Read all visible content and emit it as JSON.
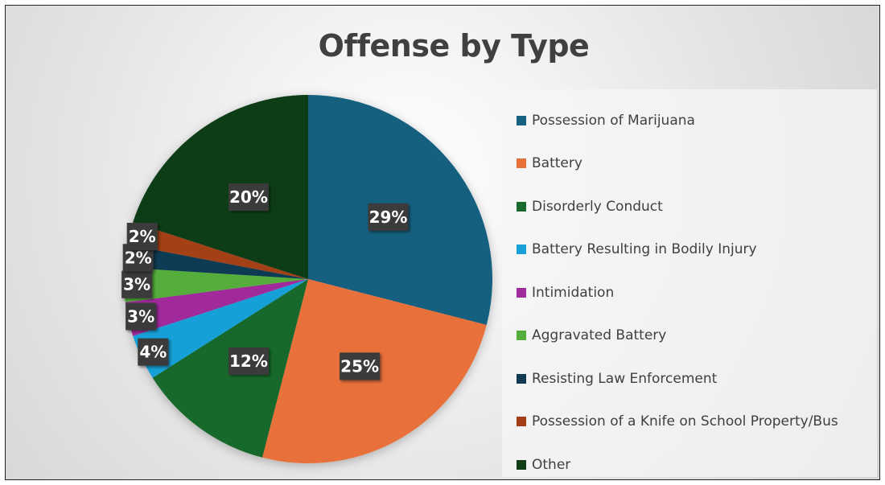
{
  "chart_data": {
    "type": "pie",
    "title": "Offense by Type",
    "legend_position": "right",
    "slices": [
      {
        "label": "Possession of Marijuana",
        "value": 29,
        "data_label": "29%",
        "color": "#17607f"
      },
      {
        "label": "Battery",
        "value": 25,
        "data_label": "25%",
        "color": "#e8703a"
      },
      {
        "label": "Disorderly Conduct",
        "value": 12,
        "data_label": "12%",
        "color": "#19692c"
      },
      {
        "label": "Battery Resulting in Bodily Injury",
        "value": 4,
        "data_label": "4%",
        "color": "#18a0d8"
      },
      {
        "label": "Intimidation",
        "value": 3,
        "data_label": "3%",
        "color": "#a02c9c"
      },
      {
        "label": "Aggravated Battery",
        "value": 3,
        "data_label": "3%",
        "color": "#54ae3a"
      },
      {
        "label": "Resisting Law Enforcement",
        "value": 2,
        "data_label": "2%",
        "color": "#0f3a52"
      },
      {
        "label": "Possession of a Knife on School Property/Bus",
        "value": 2,
        "data_label": "2%",
        "color": "#a33f17"
      },
      {
        "label": "Other",
        "value": 20,
        "data_label": "20%",
        "color": "#103d18"
      }
    ]
  }
}
